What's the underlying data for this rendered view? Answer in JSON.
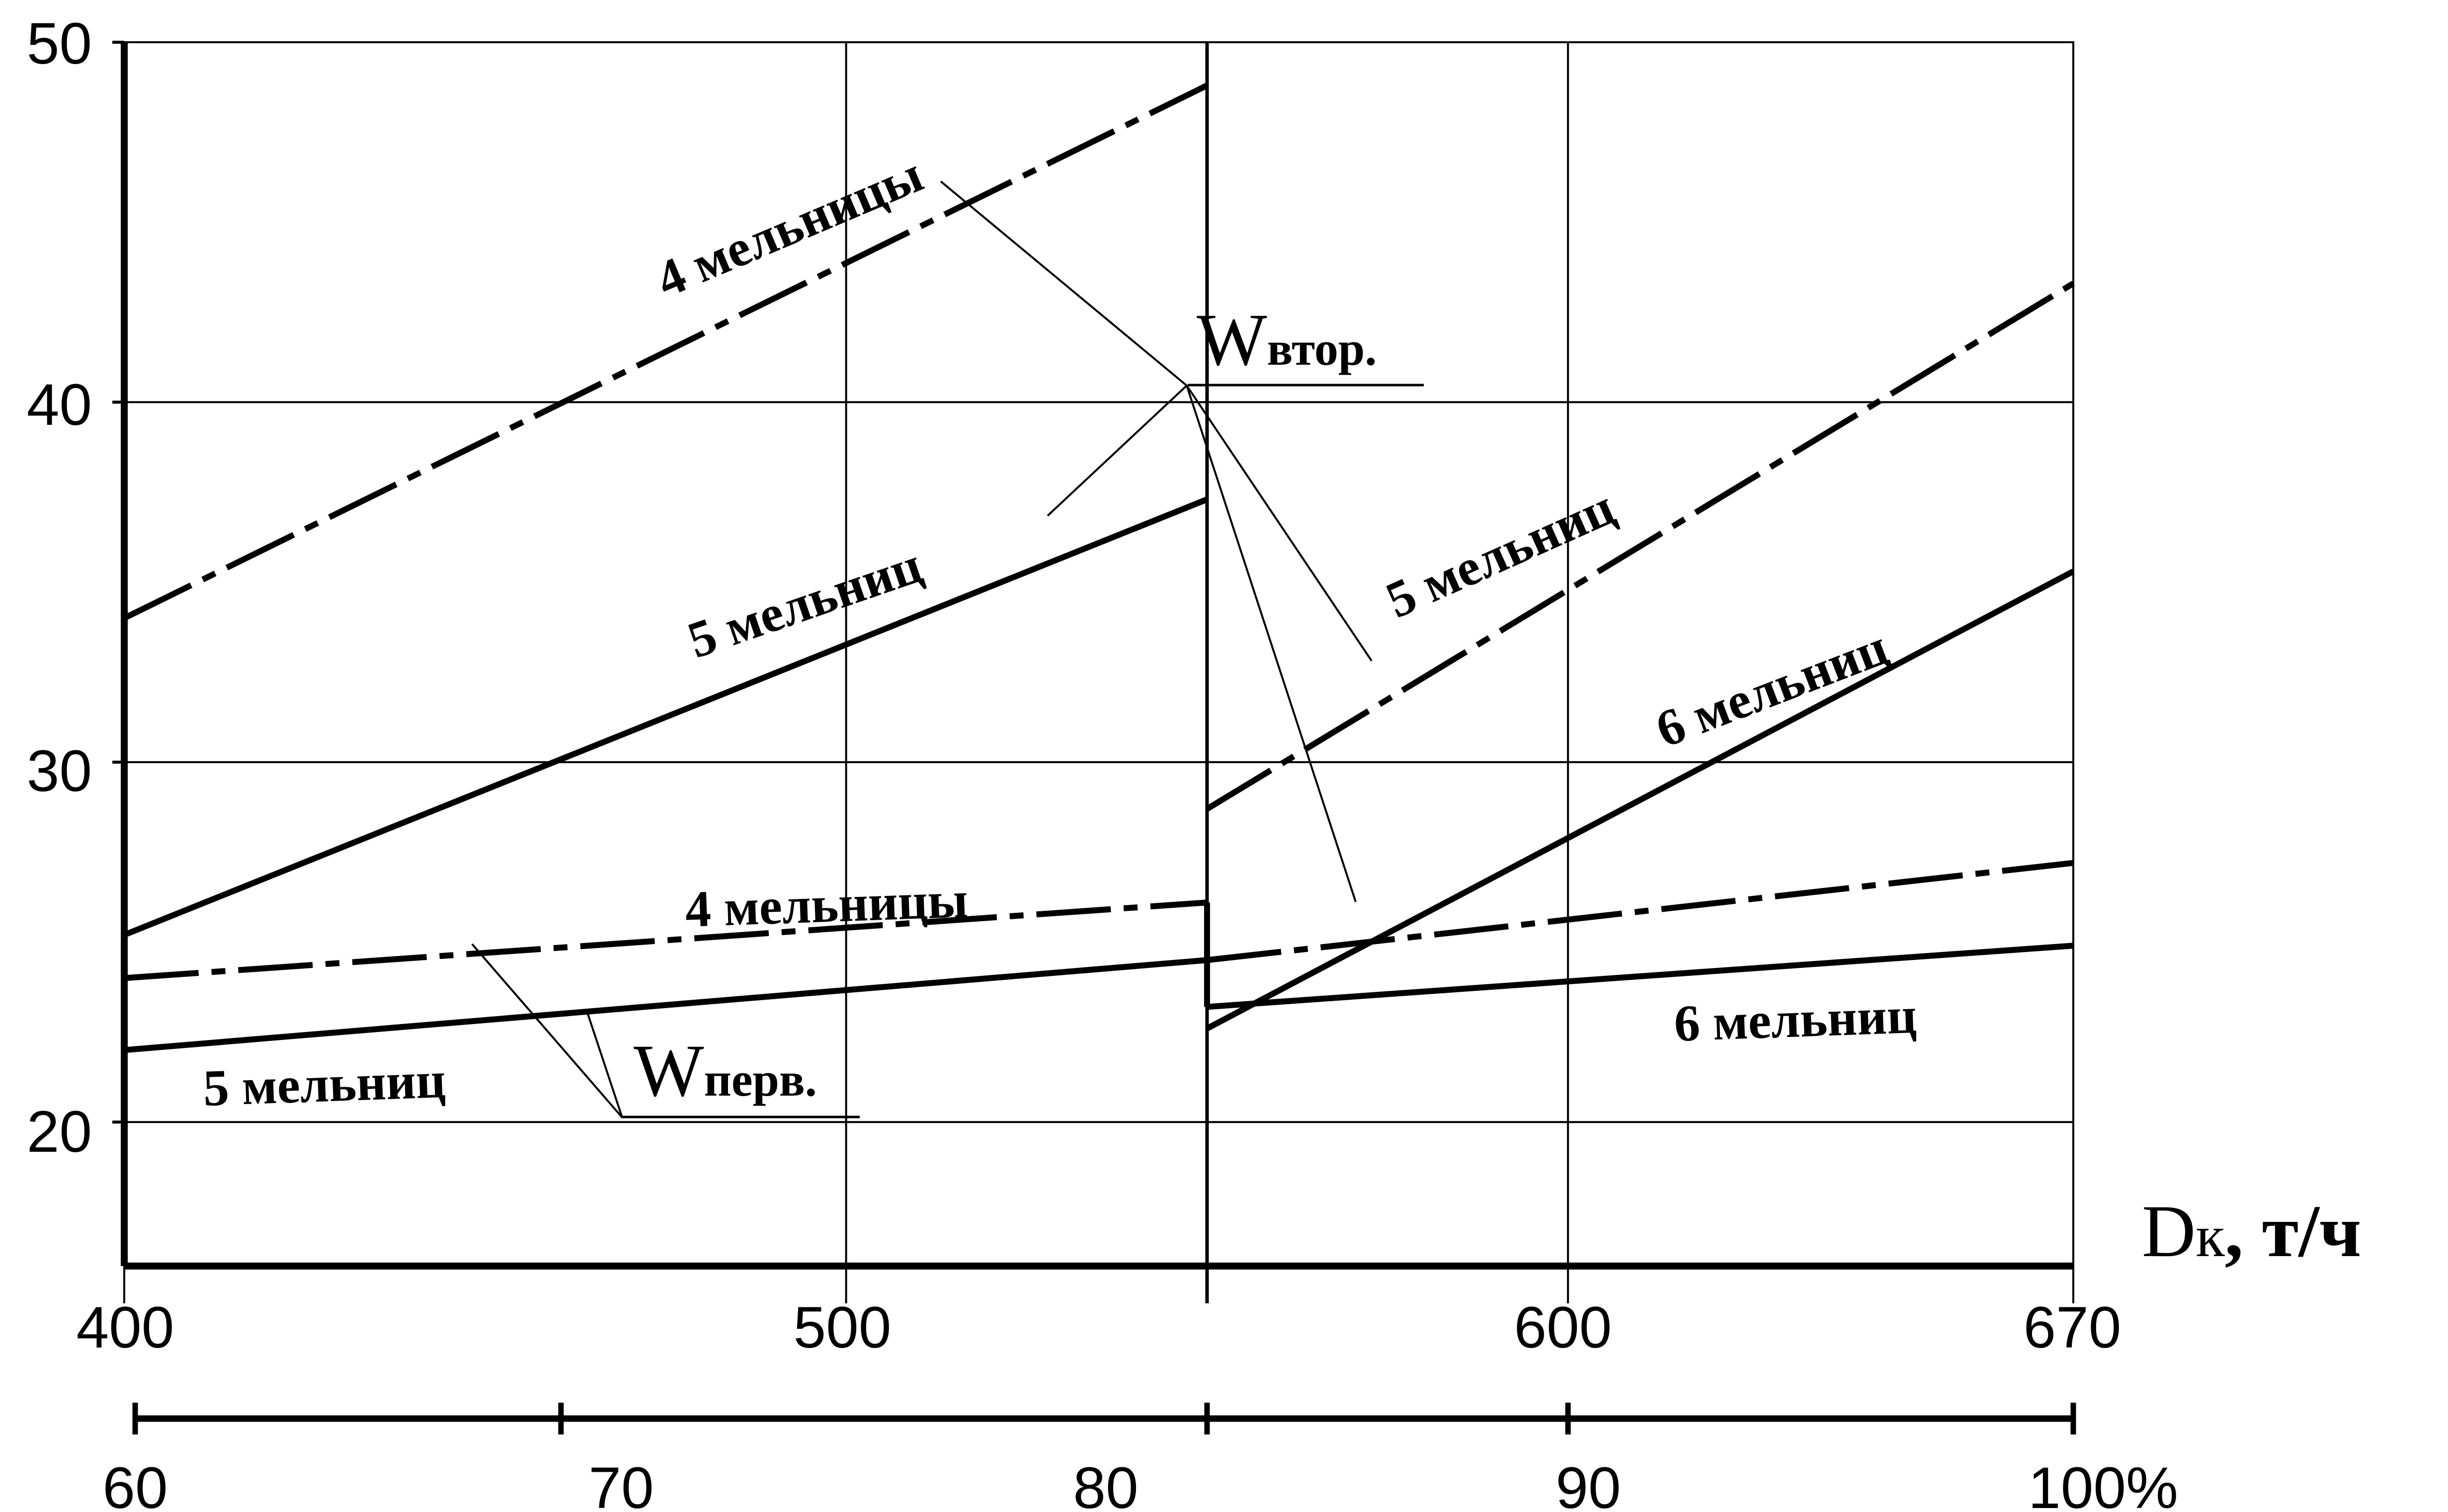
{
  "chart_data": {
    "type": "line",
    "x_unit_label_main": "D",
    "x_unit_label_sub": "к",
    "x_unit_label_tail": ", т/ч",
    "x_range": [
      400,
      670
    ],
    "x_ticks": [
      "400",
      "500",
      "600",
      "670"
    ],
    "x_gridlines": [
      400,
      500,
      550,
      600,
      670
    ],
    "y_range": [
      16,
      50
    ],
    "y_ticks": [
      "20",
      "30",
      "40",
      "50"
    ],
    "y_gridlines": [
      20,
      30,
      40,
      50
    ],
    "percent_scale": {
      "values": [
        60,
        70,
        80,
        90,
        100
      ],
      "labels": [
        "60",
        "70",
        "80",
        "90",
        "100%"
      ]
    },
    "grid": true,
    "series": [
      {
        "id": "w2-4",
        "group": "Wвтор.",
        "name": "4 мельницы",
        "style": "dashed",
        "x": [
          400,
          550
        ],
        "y": [
          34.0,
          48.8
        ]
      },
      {
        "id": "w2-5a",
        "group": "Wвтор.",
        "name": "5 мельниц",
        "style": "solid",
        "x": [
          400,
          550
        ],
        "y": [
          25.2,
          37.3
        ]
      },
      {
        "id": "w2-5b",
        "group": "Wвтор.",
        "name": "5 мельниц",
        "style": "dashed",
        "x": [
          550,
          670
        ],
        "y": [
          28.7,
          43.3
        ]
      },
      {
        "id": "w2-6",
        "group": "Wвтор.",
        "name": "6 мельниц",
        "style": "solid",
        "x": [
          550,
          670
        ],
        "y": [
          22.6,
          35.3
        ]
      },
      {
        "id": "w1-4",
        "group": "Wперв.",
        "name": "4 мельницы",
        "style": "dashed",
        "x": [
          400,
          550
        ],
        "y": [
          24.0,
          26.1
        ]
      },
      {
        "id": "w1-5a",
        "group": "Wперв.",
        "name": "5 мельниц",
        "style": "solid",
        "x": [
          400,
          550
        ],
        "y": [
          22.0,
          24.5
        ]
      },
      {
        "id": "w1-5b",
        "group": "Wперв.",
        "name": "",
        "style": "dashed",
        "x": [
          550,
          670
        ],
        "y": [
          24.5,
          27.2
        ]
      },
      {
        "id": "w1-6",
        "group": "Wперв.",
        "name": "6 мельниц",
        "style": "solid",
        "x": [
          550,
          670
        ],
        "y": [
          23.2,
          24.9
        ]
      }
    ],
    "curve_labels": {
      "w2_4": "4 мельницы",
      "w2_5a": "5 мельниц",
      "w2_5b": "5 мельниц",
      "w2_6": "6 мельниц",
      "w1_4": "4 мельницы",
      "w1_5": "5 мельниц",
      "w1_6": "6 мельниц"
    },
    "annotations": {
      "w_vtor_main": "W",
      "w_vtor_sub": "втор.",
      "w_perv_main": "W",
      "w_perv_sub": "перв."
    }
  }
}
